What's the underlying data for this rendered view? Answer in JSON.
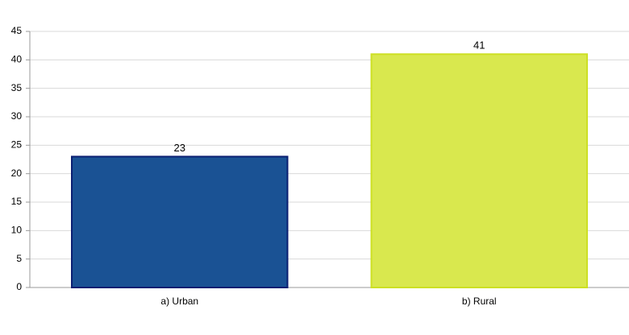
{
  "chart_data": {
    "type": "bar",
    "categories": [
      "a) Urban",
      "b) Rural"
    ],
    "values": [
      23,
      41
    ],
    "colors": [
      "#1a5294",
      "#d9e84e"
    ],
    "border_colors": [
      "#0b1f72",
      "#cde023"
    ],
    "ylim": [
      0,
      45
    ],
    "yticks": [
      0,
      5,
      10,
      15,
      20,
      25,
      30,
      35,
      40,
      45
    ],
    "grid": true
  }
}
